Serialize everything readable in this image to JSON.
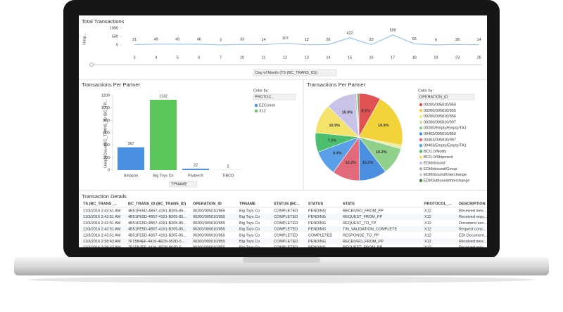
{
  "chart_data": [
    {
      "type": "line",
      "title": "Total Transactions",
      "y_label": "Unsp...",
      "x_label": "Day of Month (TS (BC_TRANS_ID))",
      "categories": [
        "3",
        "4",
        "5",
        "6",
        "7",
        "10",
        "11",
        "12",
        "13",
        "14",
        "15",
        "16",
        "17",
        "18",
        "19",
        "23",
        "26"
      ],
      "values": [
        21,
        49,
        49,
        46,
        3,
        33,
        14,
        107,
        12,
        26,
        422,
        20,
        590,
        65,
        6,
        28,
        14
      ],
      "color": "#9cc3ea",
      "ylim": [
        0,
        1000
      ],
      "yticks": [
        0,
        500,
        1000
      ]
    },
    {
      "type": "bar",
      "title": "Transactions Per Partner",
      "y_label": "UniqueCount(BC_TRANS_ID (BC_TR...",
      "x_label": "TPNAME",
      "color_by_label": "Color by:",
      "color_by": "PROTOC...",
      "categories": [
        "Amazon",
        "Big Toys Co",
        "PartnerX",
        "TIBCO"
      ],
      "series": [
        {
          "name": "EZComm",
          "color": "#4a90e2",
          "values": [
            367,
            null,
            22,
            null
          ]
        },
        {
          "name": "X12",
          "color": "#5cc85c",
          "values": [
            null,
            1132,
            null,
            2
          ]
        }
      ],
      "ylim": [
        0,
        1200
      ],
      "yticks": [
        0,
        200,
        400,
        600,
        800,
        1000,
        1200
      ]
    },
    {
      "type": "pie",
      "title": "Transactions Per Partner",
      "color_by_label": "Color by:",
      "color_by": "OPERATION_ID",
      "categories": [
        "00200/005010/850",
        "00200/005010/855",
        "00200/005010/856",
        "00200/005010/997",
        "00200/Empty/Empty/TA1",
        "00403/005010/850",
        "00403/005010/997",
        "00403/Empty/Empty/TA1",
        "BC/1.0/Notify",
        "BC/1.0/Shipment",
        "EDI/Inbound",
        "EDI/Inbound/Group",
        "EDI/Inbound/Interchange",
        "EDI/Outbound/Interchange"
      ],
      "values": [
        8.1,
        19.9,
        0.8,
        0.6,
        10.2,
        10.2,
        10.2,
        9.4,
        7.2,
        10.9,
        10.9,
        0.6,
        0.5,
        0.5
      ],
      "value_labels": [
        "8.1%",
        "19.9%",
        null,
        null,
        "10.2%",
        "10.2%",
        "10.2%",
        "9.4%",
        "7.2%",
        "10.9%",
        "10.9%",
        null,
        null,
        null
      ],
      "colors": [
        "#e05252",
        "#f2d43a",
        "#f5e67a",
        "#c8e6a0",
        "#8fd18a",
        "#4a8fe0",
        "#e36a7a",
        "#5aa0e8",
        "#4cbf6e",
        "#f3e36b",
        "#c9c3e8",
        "#b0b0b0",
        "#d0d0d0",
        "#3a8a3a"
      ]
    }
  ],
  "table": {
    "title": "Transaction Details",
    "columns": [
      "TS (BC_TRANS_...",
      "BC_TRANS_ID (BC_TRANS_ID)",
      "OPERATION_ID",
      "TPNAME",
      "STATUS (BC...",
      "STATUS",
      "STATE",
      "PROTOCOL_...",
      "DESCRIPTION"
    ],
    "rows": [
      [
        "11/3/2016 2:43:51 AM",
        "4B51FE5D-4B57-4191-B205-85...",
        "00200/005010/855",
        "Big Toys Co",
        "COMPLETED",
        "PENDING",
        "RECEIVED_FROM_PP",
        "X12",
        "Received mes..."
      ],
      [
        "11/3/2016 2:43:51 AM",
        "4B51FE5D-4B57-4191-B205-85...",
        "00200/005010/855",
        "Big Toys Co",
        "COMPLETED",
        "PENDING",
        "REQUEST_FROM_PP",
        "X12",
        "Received requ..."
      ],
      [
        "11/3/2016 2:43:51 AM",
        "4B51FE5D-4B57-4191-B205-85...",
        "00200/005010/855",
        "Big Toys Co",
        "COMPLETED",
        "PENDING",
        "REQUEST_TO_TP",
        "X12",
        "Document sen..."
      ],
      [
        "11/3/2016 2:43:51 AM",
        "4B51FE5D-4B57-4191-B205-85...",
        "00200/005010/855",
        "Big Toys Co",
        "COMPLETED",
        "PENDING",
        "TIN_VALIDATION_COMPLETE",
        "X12",
        "Request conv..."
      ],
      [
        "11/3/2016 2:43:51 AM",
        "4B51FE5D-4B57-4191-B205-85...",
        "00200/005010/855",
        "Big Toys Co",
        "COMPLETED",
        "COMPLETED",
        "RESPONSE_TO_PP",
        "X12",
        "EDI Document..."
      ],
      [
        "11/3/2016 2:38:43 AM",
        "7F15B4EF-4416-4ED9-953D-5...",
        "00200/005010/855",
        "Big Toys Co",
        "COMPLETED",
        "PENDING",
        "RECEIVED_FROM_PP",
        "X12",
        "Received mes..."
      ],
      [
        "11/3/2016 2:38:43 AM",
        "7F15B4EF-4416-4ED9-953D-5...",
        "00200/005010/855",
        "Big Toys Co",
        "COMPLETED",
        "PENDING",
        "REQUEST_FROM_PP",
        "X12",
        "Received requ..."
      ]
    ]
  }
}
